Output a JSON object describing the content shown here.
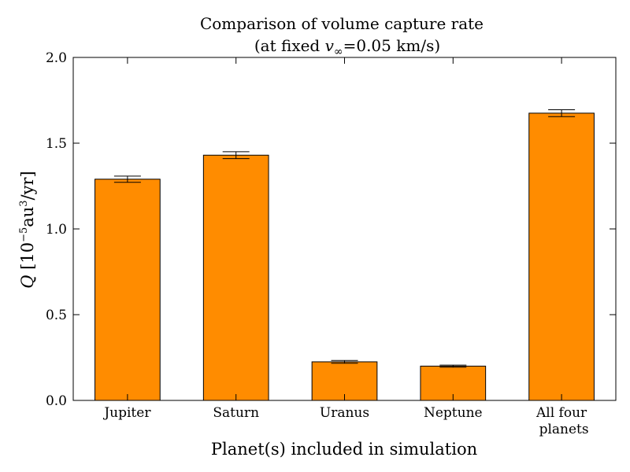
{
  "chart_data": {
    "type": "bar",
    "title_line1": "Comparison of volume capture rate",
    "title_line2_prefix": "(at fixed ",
    "title_line2_symbol": "v",
    "title_line2_subscript": "∞",
    "title_line2_suffix": "=0.05 km/s)",
    "xlabel": "Planet(s) included in simulation",
    "ylabel_symbol": "Q",
    "ylabel_prefix": " [10",
    "ylabel_exp1": "−5",
    "ylabel_mid": "au",
    "ylabel_exp2": "3",
    "ylabel_suffix": "/yr]",
    "categories": [
      [
        "Jupiter"
      ],
      [
        "Saturn"
      ],
      [
        "Uranus"
      ],
      [
        "Neptune"
      ],
      [
        "All four",
        "planets"
      ]
    ],
    "values": [
      1.29,
      1.43,
      0.225,
      0.2,
      1.675
    ],
    "errors": [
      0.018,
      0.02,
      0.008,
      0.006,
      0.02
    ],
    "ylim": [
      0,
      2.0
    ],
    "yticks": [
      "0.0",
      "0.5",
      "1.0",
      "1.5",
      "2.0"
    ],
    "ytick_values": [
      0,
      0.5,
      1.0,
      1.5,
      2.0
    ],
    "bar_color": "#ff8c00",
    "edge_color": "#000000",
    "grid": false
  }
}
